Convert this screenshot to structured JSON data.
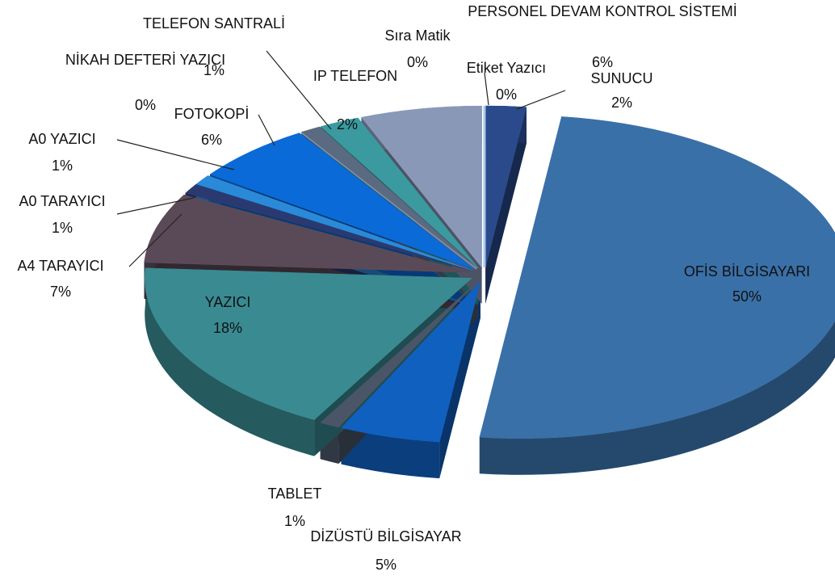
{
  "chart_data": {
    "type": "pie",
    "categories": [
      "SUNUCU",
      "OFİS BİLGİSAYARI",
      "DİZÜSTÜ BİLGİSAYAR",
      "TABLET",
      "YAZICI",
      "A4 TARAYICI",
      "A0 TARAYICI",
      "A0 YAZICI",
      "FOTOKOPİ",
      "NİKAH DEFTERİ YAZICI",
      "TELEFON SANTRALİ",
      "IP TELEFON",
      "PERSONEL DEVAM KONTROL SİSTEMİ",
      "Sıra Matik",
      "Etiket Yazıcı"
    ],
    "values": [
      2,
      50,
      5,
      1,
      18,
      7,
      1,
      1,
      6,
      0,
      1,
      2,
      6,
      0,
      0
    ],
    "value_labels": [
      "2%",
      "50%",
      "5%",
      "1%",
      "18%",
      "7%",
      "1%",
      "1%",
      "6%",
      "0%",
      "1%",
      "2%",
      "6%",
      "0%",
      "0%"
    ],
    "colors": [
      "#2a4a8c",
      "#3a70a8",
      "#1060c0",
      "#4a5668",
      "#3a8a92",
      "#5a4a58",
      "#2a3a70",
      "#2a8ad8",
      "#0a6ad8",
      "#8090a8",
      "#5a6a80",
      "#3a9aa0",
      "#8a98b8",
      "#9ab0d0",
      "#a8c8e8"
    ]
  }
}
